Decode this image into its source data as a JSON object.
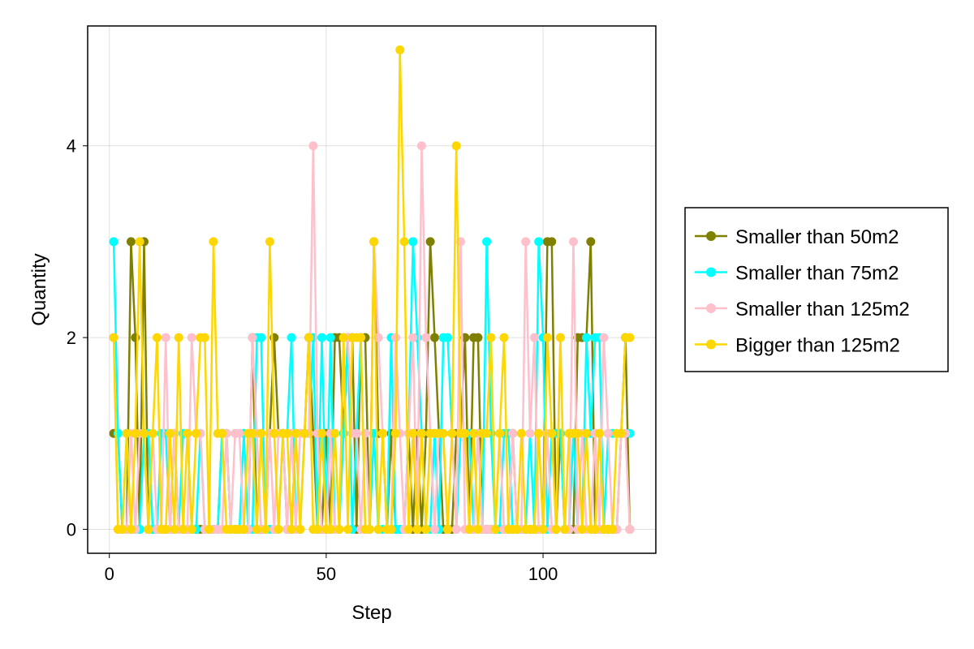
{
  "chart_data": {
    "type": "line",
    "xlabel": "Step",
    "ylabel": "Quantity",
    "xlim": [
      -5,
      126
    ],
    "ylim": [
      -0.25,
      5.25
    ],
    "xticks": [
      0,
      50,
      100
    ],
    "yticks": [
      0,
      2,
      4
    ],
    "grid": true,
    "legend_position": "right",
    "series": [
      {
        "name": "Smaller than 50m2",
        "color": "#808000",
        "values": [
          1,
          1,
          0,
          0,
          3,
          2,
          0,
          3,
          0,
          0,
          0,
          0,
          0,
          0,
          1,
          0,
          0,
          0,
          0,
          0,
          0,
          0,
          0,
          0,
          0,
          1,
          1,
          0,
          0,
          0,
          0,
          0,
          2,
          0,
          0,
          0,
          1,
          2,
          1,
          1,
          0,
          0,
          1,
          1,
          1,
          2,
          1,
          0,
          0,
          1,
          0,
          2,
          2,
          1,
          2,
          2,
          0,
          2,
          2,
          0,
          3,
          1,
          1,
          0,
          1,
          0,
          0,
          0,
          1,
          0,
          1,
          0,
          1,
          3,
          2,
          1,
          0,
          0,
          0,
          1,
          1,
          2,
          0,
          2,
          2,
          0,
          0,
          0,
          0,
          0,
          0,
          0,
          1,
          0,
          0,
          0,
          0,
          0,
          0,
          0,
          3,
          3,
          0,
          1,
          0,
          0,
          0,
          2,
          2,
          2,
          3,
          0,
          0,
          0,
          0,
          0,
          0,
          1,
          2,
          0
        ]
      },
      {
        "name": "Smaller than 75m2",
        "color": "#00ffff",
        "values": [
          3,
          1,
          0,
          1,
          0,
          0,
          0,
          1,
          1,
          0,
          0,
          1,
          1,
          0,
          0,
          0,
          1,
          1,
          0,
          0,
          1,
          0,
          0,
          0,
          0,
          1,
          1,
          0,
          0,
          0,
          1,
          0,
          0,
          2,
          2,
          0,
          0,
          0,
          0,
          1,
          1,
          2,
          0,
          0,
          1,
          1,
          2,
          0,
          2,
          0,
          2,
          0,
          0,
          1,
          2,
          0,
          1,
          2,
          0,
          0,
          1,
          0,
          0,
          0,
          2,
          0,
          0,
          0,
          1,
          3,
          2,
          1,
          0,
          0,
          1,
          0,
          2,
          2,
          1,
          0,
          1,
          1,
          1,
          0,
          1,
          0,
          3,
          1,
          0,
          0,
          1,
          1,
          0,
          0,
          0,
          0,
          1,
          0,
          3,
          2,
          0,
          1,
          1,
          1,
          0,
          0,
          1,
          0,
          0,
          2,
          1,
          2,
          2,
          0,
          1,
          1,
          1,
          1,
          1,
          1
        ]
      },
      {
        "name": "Smaller than 125m2",
        "color": "#ffc0cb",
        "values": [
          2,
          0,
          0,
          0,
          1,
          0,
          1,
          1,
          0,
          1,
          0,
          0,
          2,
          0,
          1,
          0,
          0,
          0,
          2,
          1,
          1,
          0,
          0,
          0,
          0,
          0,
          1,
          0,
          1,
          1,
          0,
          0,
          2,
          1,
          0,
          0,
          1,
          0,
          1,
          1,
          0,
          1,
          0,
          1,
          1,
          1,
          4,
          1,
          0,
          0,
          1,
          0,
          0,
          2,
          2,
          1,
          1,
          0,
          1,
          0,
          3,
          2,
          1,
          0,
          0,
          2,
          1,
          0,
          1,
          2,
          0,
          4,
          2,
          1,
          0,
          1,
          1,
          0,
          1,
          0,
          3,
          0,
          0,
          0,
          1,
          0,
          0,
          0,
          0,
          1,
          0,
          0,
          1,
          0,
          0,
          3,
          1,
          2,
          0,
          0,
          1,
          0,
          0,
          2,
          0,
          0,
          3,
          0,
          1,
          0,
          0,
          1,
          0,
          2,
          1,
          0,
          0,
          1,
          1,
          0
        ]
      },
      {
        "name": "Bigger than 125m2",
        "color": "#ffd700",
        "values": [
          2,
          0,
          0,
          1,
          0,
          1,
          3,
          1,
          0,
          1,
          2,
          0,
          0,
          1,
          0,
          2,
          0,
          1,
          0,
          1,
          2,
          2,
          0,
          3,
          1,
          1,
          0,
          0,
          0,
          0,
          0,
          1,
          1,
          0,
          1,
          0,
          3,
          1,
          0,
          1,
          1,
          0,
          1,
          0,
          1,
          2,
          0,
          0,
          1,
          0,
          0,
          1,
          0,
          2,
          0,
          2,
          2,
          2,
          0,
          0,
          3,
          0,
          1,
          0,
          0,
          1,
          5,
          3,
          0,
          1,
          0,
          1,
          0,
          1,
          1,
          1,
          1,
          0,
          1,
          4,
          1,
          1,
          0,
          1,
          0,
          1,
          1,
          2,
          0,
          1,
          2,
          0,
          0,
          0,
          1,
          0,
          0,
          0,
          1,
          0,
          2,
          1,
          0,
          2,
          0,
          1,
          1,
          1,
          0,
          1,
          0,
          0,
          1,
          0,
          0,
          0,
          1,
          1,
          2,
          2
        ]
      }
    ]
  }
}
